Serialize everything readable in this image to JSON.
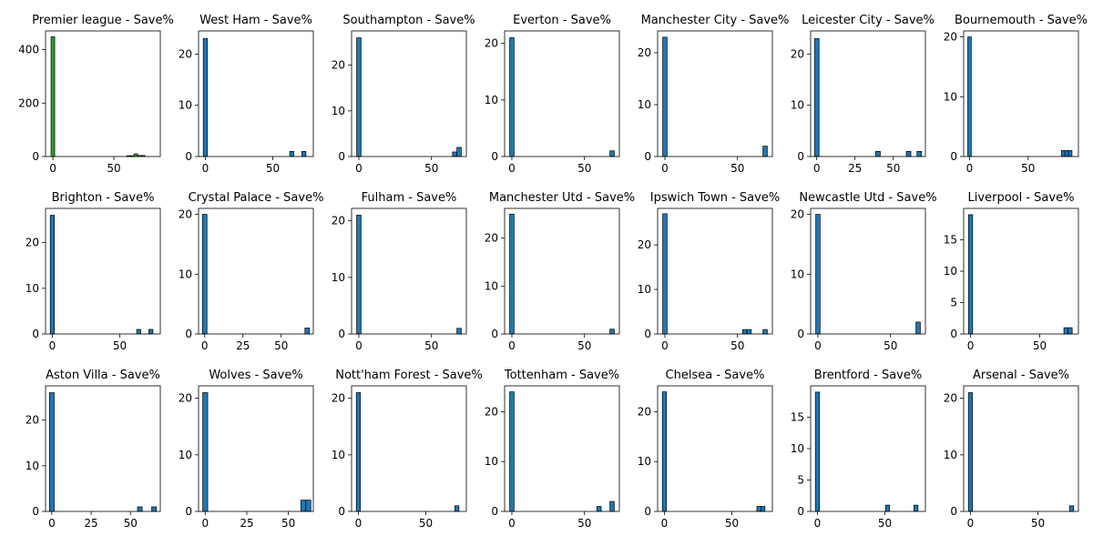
{
  "figure": {
    "background": "#ffffff",
    "grid": false
  },
  "colors": {
    "premier_bar": "#2ca02c",
    "club_bar": "#1f77b4",
    "bar_edge": "#000000"
  },
  "chart_data": [
    {
      "type": "bar",
      "title": "Premier league - Save%",
      "xlim": [
        -6,
        88
      ],
      "ylim": [
        0,
        470
      ],
      "xticks": [
        0,
        50
      ],
      "yticks": [
        0,
        200,
        400
      ],
      "bar_width": 3,
      "x": [
        0,
        62,
        65,
        68,
        71,
        74
      ],
      "values": [
        448,
        3,
        3,
        10,
        4,
        4
      ]
    },
    {
      "type": "bar",
      "title": "West Ham - Save%",
      "xlim": [
        -5,
        80
      ],
      "ylim": [
        0,
        24.5
      ],
      "xticks": [
        0,
        50
      ],
      "yticks": [
        0,
        10,
        20
      ],
      "bar_width": 3,
      "x": [
        0,
        64,
        73
      ],
      "values": [
        23,
        1,
        1
      ]
    },
    {
      "type": "bar",
      "title": "Southampton - Save%",
      "xlim": [
        -5,
        74
      ],
      "ylim": [
        0,
        27.5
      ],
      "xticks": [
        0,
        50
      ],
      "yticks": [
        0,
        10,
        20
      ],
      "bar_width": 3,
      "x": [
        0,
        66,
        69
      ],
      "values": [
        26,
        1,
        2
      ]
    },
    {
      "type": "bar",
      "title": "Everton - Save%",
      "xlim": [
        -5,
        74
      ],
      "ylim": [
        0,
        22.2
      ],
      "xticks": [
        0,
        50
      ],
      "yticks": [
        0,
        10,
        20
      ],
      "bar_width": 3,
      "x": [
        0,
        69
      ],
      "values": [
        21,
        1
      ]
    },
    {
      "type": "bar",
      "title": "Manchester City - Save%",
      "xlim": [
        -5,
        74
      ],
      "ylim": [
        0,
        24.2
      ],
      "xticks": [
        0,
        50
      ],
      "yticks": [
        0,
        10,
        20
      ],
      "bar_width": 3,
      "x": [
        0,
        69
      ],
      "values": [
        23,
        2
      ]
    },
    {
      "type": "bar",
      "title": "Leicester City - Save%",
      "xlim": [
        -4,
        71
      ],
      "ylim": [
        0,
        24.5
      ],
      "xticks": [
        0,
        25,
        50
      ],
      "yticks": [
        0,
        10,
        20
      ],
      "bar_width": 3,
      "x": [
        0,
        40,
        60,
        67
      ],
      "values": [
        23,
        1,
        1,
        1
      ]
    },
    {
      "type": "bar",
      "title": "Bournemouth - Save%",
      "xlim": [
        -5,
        93
      ],
      "ylim": [
        0,
        21
      ],
      "xticks": [
        0,
        50
      ],
      "yticks": [
        0,
        10,
        20
      ],
      "bar_width": 3,
      "x": [
        0,
        80,
        83,
        86
      ],
      "values": [
        20,
        1,
        1,
        1
      ]
    },
    {
      "type": "bar",
      "title": "Brighton - Save%",
      "xlim": [
        -5,
        80
      ],
      "ylim": [
        0,
        27.5
      ],
      "xticks": [
        0,
        50
      ],
      "yticks": [
        0,
        10,
        20
      ],
      "bar_width": 3,
      "x": [
        0,
        64,
        73
      ],
      "values": [
        26,
        1,
        1
      ]
    },
    {
      "type": "bar",
      "title": "Crystal Palace - Save%",
      "xlim": [
        -4,
        71
      ],
      "ylim": [
        0,
        21
      ],
      "xticks": [
        0,
        25,
        50
      ],
      "yticks": [
        0,
        10,
        20
      ],
      "bar_width": 3,
      "x": [
        0,
        67
      ],
      "values": [
        20,
        1
      ]
    },
    {
      "type": "bar",
      "title": "Fulham - Save%",
      "xlim": [
        -5,
        74
      ],
      "ylim": [
        0,
        22.2
      ],
      "xticks": [
        0,
        50
      ],
      "yticks": [
        0,
        10,
        20
      ],
      "bar_width": 3,
      "x": [
        0,
        69
      ],
      "values": [
        21,
        1
      ]
    },
    {
      "type": "bar",
      "title": "Manchester Utd - Save%",
      "xlim": [
        -5,
        74
      ],
      "ylim": [
        0,
        26.2
      ],
      "xticks": [
        0,
        50
      ],
      "yticks": [
        0,
        10,
        20
      ],
      "bar_width": 3,
      "x": [
        0,
        69
      ],
      "values": [
        25,
        1
      ]
    },
    {
      "type": "bar",
      "title": "Ipswich Town - Save%",
      "xlim": [
        -5,
        74
      ],
      "ylim": [
        0,
        28.2
      ],
      "xticks": [
        0,
        50
      ],
      "yticks": [
        0,
        10,
        20
      ],
      "bar_width": 3,
      "x": [
        0,
        55,
        58,
        69
      ],
      "values": [
        27,
        1,
        1,
        1
      ]
    },
    {
      "type": "bar",
      "title": "Newcastle Utd - Save%",
      "xlim": [
        -5,
        74
      ],
      "ylim": [
        0,
        21
      ],
      "xticks": [
        0,
        50
      ],
      "yticks": [
        0,
        10,
        20
      ],
      "bar_width": 3,
      "x": [
        0,
        69
      ],
      "values": [
        20,
        2
      ]
    },
    {
      "type": "bar",
      "title": "Liverpool - Save%",
      "xlim": [
        -5,
        78
      ],
      "ylim": [
        0,
        20
      ],
      "xticks": [
        0,
        50
      ],
      "yticks": [
        0,
        5,
        10,
        15
      ],
      "bar_width": 3,
      "x": [
        0,
        69,
        72
      ],
      "values": [
        19,
        1,
        1
      ]
    },
    {
      "type": "bar",
      "title": "Aston Villa - Save%",
      "xlim": [
        -4,
        69
      ],
      "ylim": [
        0,
        27.5
      ],
      "xticks": [
        0,
        25,
        50
      ],
      "yticks": [
        0,
        10,
        20
      ],
      "bar_width": 3,
      "x": [
        0,
        56,
        65
      ],
      "values": [
        26,
        1,
        1
      ]
    },
    {
      "type": "bar",
      "title": "Wolves - Save%",
      "xlim": [
        -4,
        65
      ],
      "ylim": [
        0,
        22.2
      ],
      "xticks": [
        0,
        25,
        50
      ],
      "yticks": [
        0,
        10,
        20
      ],
      "bar_width": 3,
      "x": [
        0,
        59,
        62
      ],
      "values": [
        21,
        2,
        2
      ]
    },
    {
      "type": "bar",
      "title": "Nott'ham Forest - Save%",
      "xlim": [
        -5,
        80
      ],
      "ylim": [
        0,
        22.2
      ],
      "xticks": [
        0,
        50
      ],
      "yticks": [
        0,
        10,
        20
      ],
      "bar_width": 3,
      "x": [
        0,
        73
      ],
      "values": [
        21,
        1
      ]
    },
    {
      "type": "bar",
      "title": "Tottenham - Save%",
      "xlim": [
        -5,
        74
      ],
      "ylim": [
        0,
        25.2
      ],
      "xticks": [
        0,
        50
      ],
      "yticks": [
        0,
        10,
        20
      ],
      "bar_width": 3,
      "x": [
        0,
        60,
        69
      ],
      "values": [
        24,
        1,
        2
      ]
    },
    {
      "type": "bar",
      "title": "Chelsea - Save%",
      "xlim": [
        -5,
        80
      ],
      "ylim": [
        0,
        25.2
      ],
      "xticks": [
        0,
        50
      ],
      "yticks": [
        0,
        10,
        20
      ],
      "bar_width": 3,
      "x": [
        0,
        70,
        73
      ],
      "values": [
        24,
        1,
        1
      ]
    },
    {
      "type": "bar",
      "title": "Brentford - Save%",
      "xlim": [
        -5,
        80
      ],
      "ylim": [
        0,
        20
      ],
      "xticks": [
        0,
        50
      ],
      "yticks": [
        0,
        5,
        10,
        15
      ],
      "bar_width": 3,
      "x": [
        0,
        52,
        73
      ],
      "values": [
        19,
        1,
        1
      ]
    },
    {
      "type": "bar",
      "title": "Arsenal - Save%",
      "xlim": [
        -5,
        80
      ],
      "ylim": [
        0,
        22.2
      ],
      "xticks": [
        0,
        50
      ],
      "yticks": [
        0,
        10,
        20
      ],
      "bar_width": 3,
      "x": [
        0,
        75
      ],
      "values": [
        21,
        1
      ]
    }
  ]
}
